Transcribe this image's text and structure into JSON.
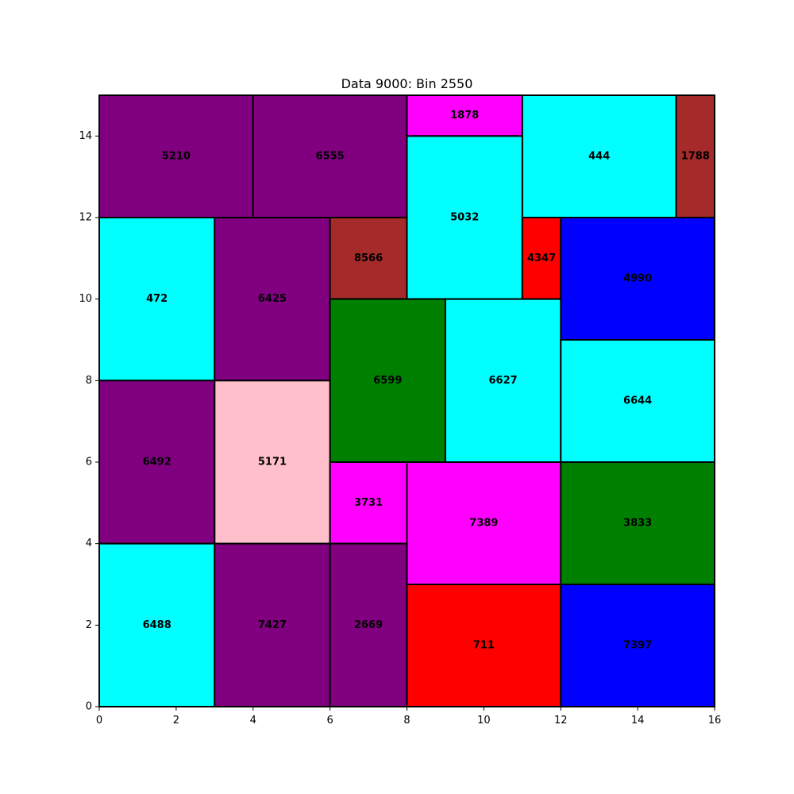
{
  "chart_data": {
    "type": "treemap",
    "title": "Data 9000: Bin 2550",
    "xlabel": "",
    "ylabel": "",
    "xlim": [
      0,
      16
    ],
    "ylim": [
      0,
      15
    ],
    "xticks": [
      0,
      2,
      4,
      6,
      8,
      10,
      12,
      14,
      16
    ],
    "yticks": [
      0,
      2,
      4,
      6,
      8,
      10,
      12,
      14
    ],
    "grid": false,
    "rects": [
      {
        "label": "5210",
        "x": 0,
        "y": 12,
        "w": 4,
        "h": 3,
        "color": "#800080"
      },
      {
        "label": "6555",
        "x": 4,
        "y": 12,
        "w": 4,
        "h": 3,
        "color": "#800080"
      },
      {
        "label": "1878",
        "x": 8,
        "y": 14,
        "w": 3,
        "h": 1,
        "color": "#ff00ff"
      },
      {
        "label": "444",
        "x": 11,
        "y": 12,
        "w": 4,
        "h": 3,
        "color": "#00ffff"
      },
      {
        "label": "1788",
        "x": 15,
        "y": 12,
        "w": 1,
        "h": 3,
        "color": "#a52a2a"
      },
      {
        "label": "5032",
        "x": 8,
        "y": 10,
        "w": 3,
        "h": 4,
        "color": "#00ffff"
      },
      {
        "label": "472",
        "x": 0,
        "y": 8,
        "w": 3,
        "h": 4,
        "color": "#00ffff"
      },
      {
        "label": "6425",
        "x": 3,
        "y": 8,
        "w": 3,
        "h": 4,
        "color": "#800080"
      },
      {
        "label": "8566",
        "x": 6,
        "y": 10,
        "w": 2,
        "h": 2,
        "color": "#a52a2a"
      },
      {
        "label": "4347",
        "x": 11,
        "y": 10,
        "w": 1,
        "h": 2,
        "color": "#ff0000"
      },
      {
        "label": "4990",
        "x": 12,
        "y": 9,
        "w": 4,
        "h": 3,
        "color": "#0000ff"
      },
      {
        "label": "6599",
        "x": 6,
        "y": 6,
        "w": 3,
        "h": 4,
        "color": "#008000"
      },
      {
        "label": "6627",
        "x": 9,
        "y": 6,
        "w": 3,
        "h": 4,
        "color": "#00ffff"
      },
      {
        "label": "6644",
        "x": 12,
        "y": 6,
        "w": 4,
        "h": 3,
        "color": "#00ffff"
      },
      {
        "label": "6492",
        "x": 0,
        "y": 4,
        "w": 3,
        "h": 4,
        "color": "#800080"
      },
      {
        "label": "5171",
        "x": 3,
        "y": 4,
        "w": 3,
        "h": 4,
        "color": "#ffc0cb"
      },
      {
        "label": "3731",
        "x": 6,
        "y": 4,
        "w": 2,
        "h": 2,
        "color": "#ff00ff"
      },
      {
        "label": "7389",
        "x": 8,
        "y": 3,
        "w": 4,
        "h": 3,
        "color": "#ff00ff"
      },
      {
        "label": "3833",
        "x": 12,
        "y": 3,
        "w": 4,
        "h": 3,
        "color": "#008000"
      },
      {
        "label": "6488",
        "x": 0,
        "y": 0,
        "w": 3,
        "h": 4,
        "color": "#00ffff"
      },
      {
        "label": "7427",
        "x": 3,
        "y": 0,
        "w": 3,
        "h": 4,
        "color": "#800080"
      },
      {
        "label": "2669",
        "x": 6,
        "y": 0,
        "w": 2,
        "h": 4,
        "color": "#800080"
      },
      {
        "label": "711",
        "x": 8,
        "y": 0,
        "w": 4,
        "h": 3,
        "color": "#ff0000"
      },
      {
        "label": "7397",
        "x": 12,
        "y": 0,
        "w": 4,
        "h": 3,
        "color": "#0000ff"
      }
    ]
  }
}
